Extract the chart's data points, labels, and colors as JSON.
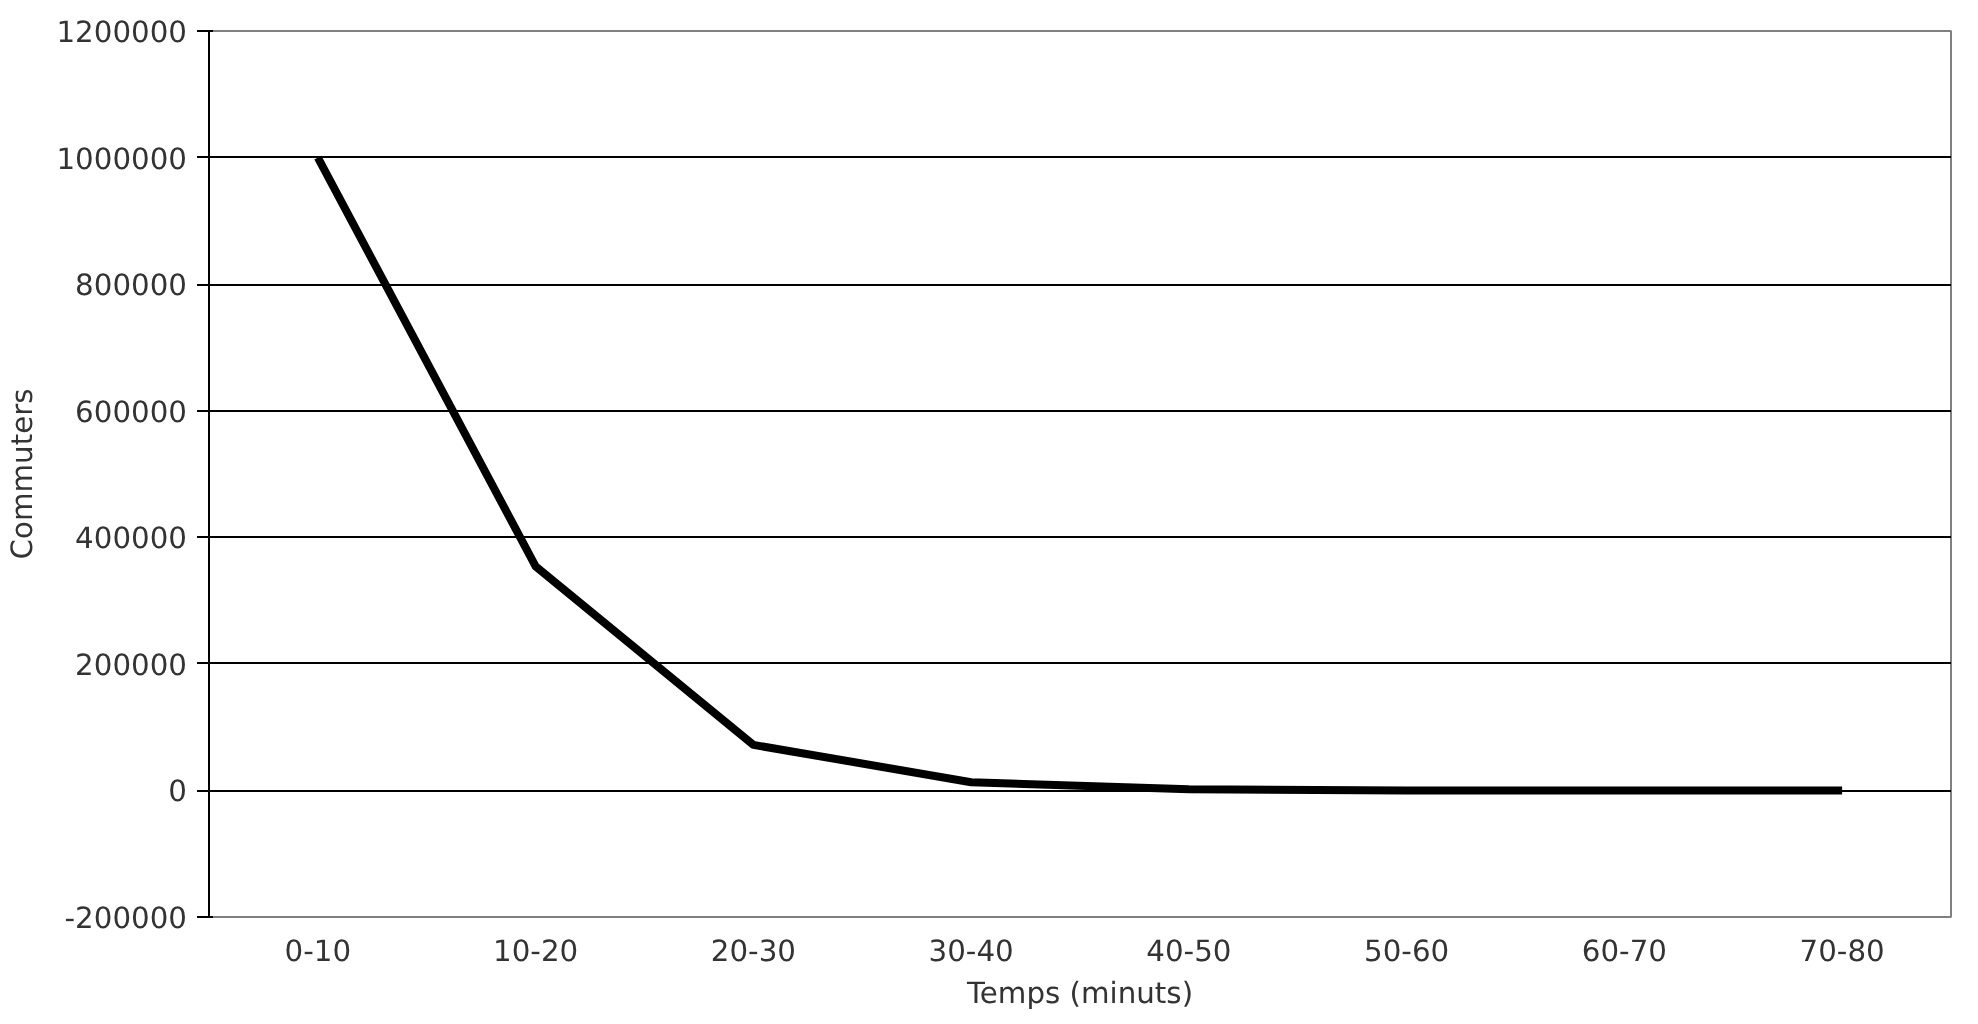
{
  "chart_data": {
    "type": "line",
    "xlabel": "Temps (minuts)",
    "ylabel": "Commuters",
    "categories": [
      "0-10",
      "10-20",
      "20-30",
      "30-40",
      "40-50",
      "50-60",
      "60-70",
      "70-80"
    ],
    "series": [
      {
        "color": "#000000",
        "values": [
          1000000,
          354000,
          72000,
          13000,
          2000,
          0,
          0,
          0
        ]
      }
    ],
    "ylim": [
      -200000,
      1200000
    ],
    "yticks": [
      -200000,
      0,
      200000,
      400000,
      600000,
      800000,
      1000000,
      1200000
    ],
    "grid": "y"
  }
}
